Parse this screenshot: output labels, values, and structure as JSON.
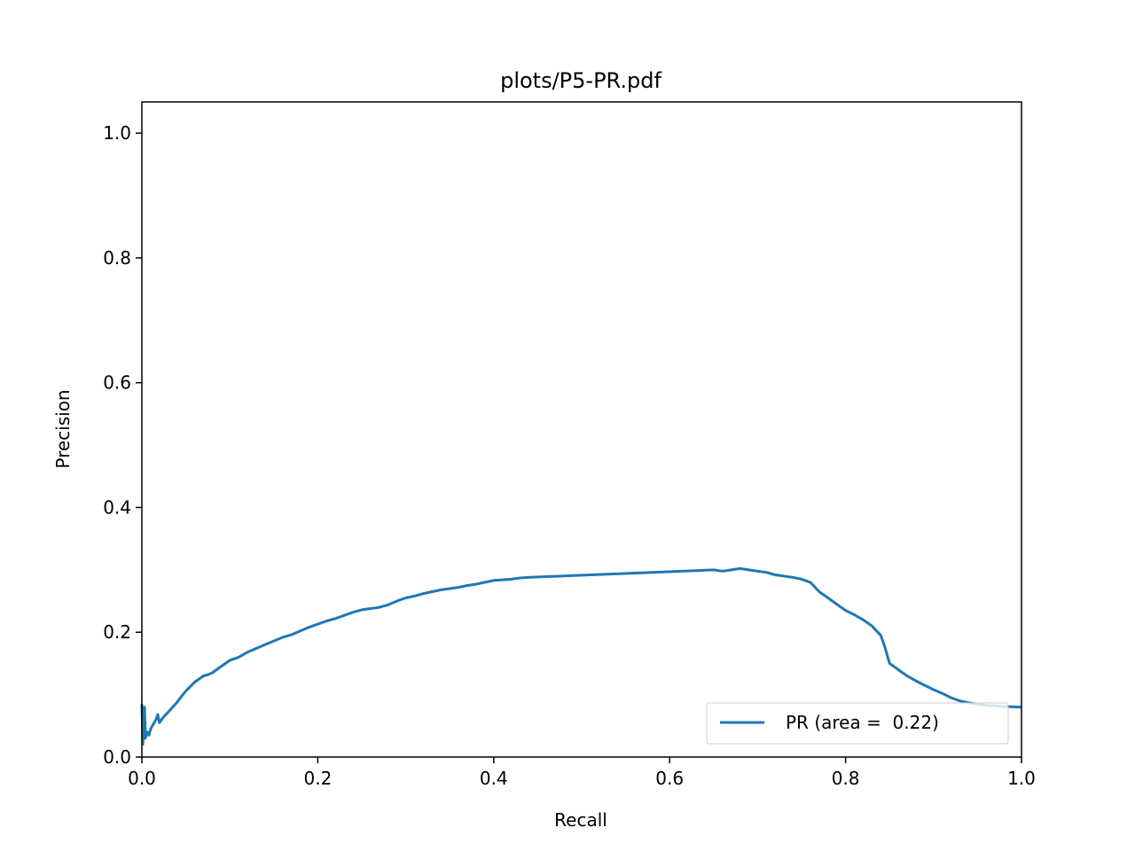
{
  "chart_data": {
    "type": "line",
    "title": "plots/P5-PR.pdf",
    "xlabel": "Recall",
    "ylabel": "Precision",
    "xlim": [
      0.0,
      1.0
    ],
    "ylim": [
      0.0,
      1.05
    ],
    "xticks": [
      "0.0",
      "0.2",
      "0.4",
      "0.6",
      "0.8",
      "1.0"
    ],
    "yticks": [
      "0.0",
      "0.2",
      "0.4",
      "0.6",
      "0.8",
      "1.0"
    ],
    "grid": false,
    "legend_position": "lower-right",
    "series": [
      {
        "name": "PR (area =  0.22)",
        "color": "#1f77b4",
        "x": [
          0.0,
          0.001,
          0.002,
          0.003,
          0.004,
          0.006,
          0.008,
          0.01,
          0.012,
          0.014,
          0.016,
          0.018,
          0.02,
          0.025,
          0.03,
          0.035,
          0.04,
          0.045,
          0.05,
          0.055,
          0.06,
          0.065,
          0.07,
          0.075,
          0.08,
          0.09,
          0.1,
          0.11,
          0.12,
          0.13,
          0.14,
          0.15,
          0.16,
          0.17,
          0.18,
          0.19,
          0.2,
          0.21,
          0.22,
          0.23,
          0.24,
          0.25,
          0.26,
          0.27,
          0.28,
          0.29,
          0.3,
          0.31,
          0.32,
          0.33,
          0.34,
          0.35,
          0.36,
          0.37,
          0.38,
          0.39,
          0.4,
          0.41,
          0.42,
          0.43,
          0.44,
          0.65,
          0.66,
          0.67,
          0.68,
          0.69,
          0.7,
          0.71,
          0.72,
          0.73,
          0.74,
          0.75,
          0.76,
          0.77,
          0.78,
          0.79,
          0.8,
          0.81,
          0.82,
          0.83,
          0.84,
          0.845,
          0.85,
          0.855,
          0.86,
          0.87,
          0.88,
          0.89,
          0.9,
          0.91,
          0.92,
          0.93,
          0.94,
          0.95,
          0.96,
          0.98,
          1.0
        ],
        "y": [
          0.085,
          0.02,
          0.04,
          0.08,
          0.03,
          0.04,
          0.035,
          0.045,
          0.05,
          0.055,
          0.06,
          0.068,
          0.055,
          0.065,
          0.072,
          0.08,
          0.088,
          0.097,
          0.106,
          0.113,
          0.12,
          0.125,
          0.13,
          0.132,
          0.135,
          0.145,
          0.155,
          0.16,
          0.168,
          0.174,
          0.18,
          0.186,
          0.192,
          0.196,
          0.202,
          0.208,
          0.213,
          0.218,
          0.222,
          0.227,
          0.232,
          0.236,
          0.238,
          0.24,
          0.244,
          0.25,
          0.255,
          0.258,
          0.262,
          0.265,
          0.268,
          0.27,
          0.272,
          0.275,
          0.277,
          0.28,
          0.283,
          0.284,
          0.285,
          0.287,
          0.288,
          0.3,
          0.298,
          0.3,
          0.302,
          0.3,
          0.298,
          0.296,
          0.292,
          0.29,
          0.288,
          0.285,
          0.28,
          0.265,
          0.255,
          0.245,
          0.235,
          0.228,
          0.22,
          0.21,
          0.195,
          0.175,
          0.15,
          0.145,
          0.14,
          0.13,
          0.122,
          0.115,
          0.108,
          0.102,
          0.095,
          0.09,
          0.087,
          0.085,
          0.083,
          0.081,
          0.08
        ]
      }
    ]
  }
}
